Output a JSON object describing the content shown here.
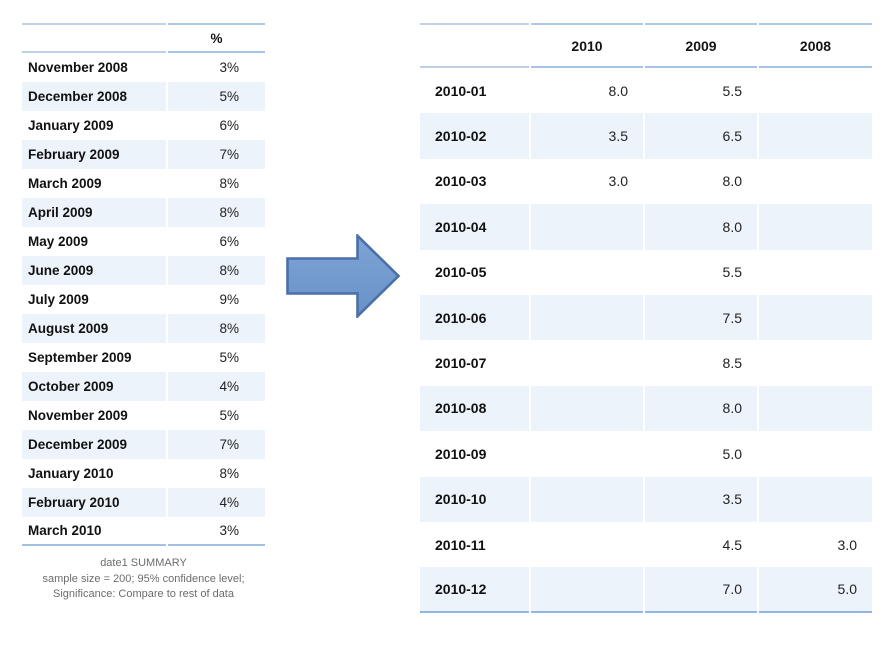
{
  "page": {
    "background": "#ffffff",
    "description_colors": {
      "table_border_light": "#adc8e8",
      "table_border_bottom": "#93b5e4",
      "zebra_row_background": "#edf3fb",
      "label_text": "#111111",
      "value_text": "#222222",
      "footer_text": "#6c6c6c",
      "arrow_fill": "#6f9ace",
      "arrow_fill_light": "#7fa3d6",
      "arrow_stroke": "#4a70a8"
    }
  },
  "left_table": {
    "value_column_header": "%",
    "rows": [
      [
        "November 2008",
        "3%"
      ],
      [
        "December 2008",
        "5%"
      ],
      [
        "January 2009",
        "6%"
      ],
      [
        "February 2009",
        "7%"
      ],
      [
        "March 2009",
        "8%"
      ],
      [
        "April 2009",
        "8%"
      ],
      [
        "May 2009",
        "6%"
      ],
      [
        "June 2009",
        "8%"
      ],
      [
        "July 2009",
        "9%"
      ],
      [
        "August 2009",
        "8%"
      ],
      [
        "September 2009",
        "5%"
      ],
      [
        "October 2009",
        "4%"
      ],
      [
        "November 2009",
        "5%"
      ],
      [
        "December 2009",
        "7%"
      ],
      [
        "January 2010",
        "8%"
      ],
      [
        "February 2010",
        "4%"
      ],
      [
        "March 2010",
        "3%"
      ]
    ],
    "footer_lines": [
      "date1 SUMMARY",
      "sample size = 200; 95% confidence level;",
      "Significance: Compare to rest of data"
    ]
  },
  "arrow": {
    "icon": "right-arrow"
  },
  "right_table": {
    "column_headers": [
      "2010",
      "2009",
      "2008"
    ],
    "rows": [
      [
        "2010-01",
        "8.0",
        "5.5",
        ""
      ],
      [
        "2010-02",
        "3.5",
        "6.5",
        ""
      ],
      [
        "2010-03",
        "3.0",
        "8.0",
        ""
      ],
      [
        "2010-04",
        "",
        "8.0",
        ""
      ],
      [
        "2010-05",
        "",
        "5.5",
        ""
      ],
      [
        "2010-06",
        "",
        "7.5",
        ""
      ],
      [
        "2010-07",
        "",
        "8.5",
        ""
      ],
      [
        "2010-08",
        "",
        "8.0",
        ""
      ],
      [
        "2010-09",
        "",
        "5.0",
        ""
      ],
      [
        "2010-10",
        "",
        "3.5",
        ""
      ],
      [
        "2010-11",
        "",
        "4.5",
        "3.0"
      ],
      [
        "2010-12",
        "",
        "7.0",
        "5.0"
      ]
    ]
  }
}
